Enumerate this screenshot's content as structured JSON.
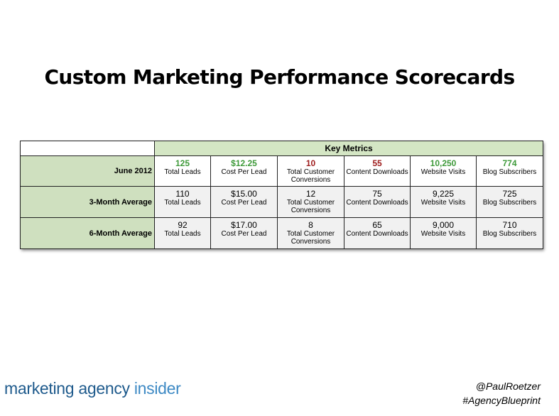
{
  "title": "Custom Marketing Performance Scorecards",
  "table": {
    "header": "Key Metrics",
    "columns": [
      "Total Leads",
      "Cost Per Lead",
      "Total Customer Conversions",
      "Content Downloads",
      "Website Visits",
      "Blog Subscribers"
    ],
    "rows": [
      {
        "label": "June 2012",
        "values": [
          "125",
          "$12.25",
          "10",
          "55",
          "10,250",
          "774"
        ],
        "value_colors": [
          "green",
          "green",
          "red",
          "red",
          "green",
          "green"
        ]
      },
      {
        "label": "3-Month Average",
        "values": [
          "110",
          "$15.00",
          "12",
          "75",
          "9,225",
          "725"
        ]
      },
      {
        "label": "6-Month Average",
        "values": [
          "92",
          "$17.00",
          "8",
          "65",
          "9,000",
          "710"
        ]
      }
    ]
  },
  "footer": {
    "logo_part1": "marketing agency",
    "logo_part2": " insider",
    "handle": "@PaulRoetzer",
    "hashtag": "#AgencyBlueprint"
  },
  "colors": {
    "green": "#3e9a3a",
    "red": "#9e1c1c",
    "header_bg": "#d4e6c4",
    "label_bg": "#cfe0bf",
    "logo": "#1e5a8c"
  }
}
